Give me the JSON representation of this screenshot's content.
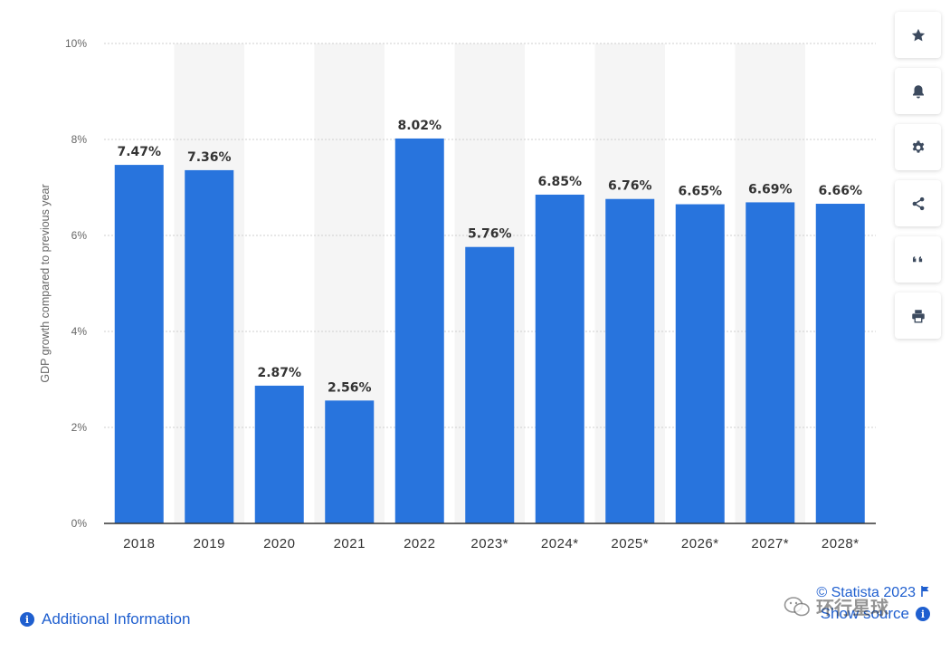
{
  "chart_data": {
    "type": "bar",
    "categories": [
      "2018",
      "2019",
      "2020",
      "2021",
      "2022",
      "2023*",
      "2024*",
      "2025*",
      "2026*",
      "2027*",
      "2028*"
    ],
    "values": [
      7.47,
      7.36,
      2.87,
      2.56,
      8.02,
      5.76,
      6.85,
      6.76,
      6.65,
      6.69,
      6.66
    ],
    "value_labels": [
      "7.47%",
      "7.36%",
      "2.87%",
      "2.56%",
      "8.02%",
      "5.76%",
      "6.85%",
      "6.76%",
      "6.65%",
      "6.69%",
      "6.66%"
    ],
    "ylabel": "GDP growth compared to previous year",
    "ylim": [
      0,
      10
    ],
    "yticks": [
      0,
      2,
      4,
      6,
      8,
      10
    ],
    "ytick_labels": [
      "0%",
      "2%",
      "4%",
      "6%",
      "8%",
      "10%"
    ],
    "grid": true,
    "legend": "none",
    "bar_color": "#2874dd"
  },
  "toolbar": [
    {
      "name": "favorite-button",
      "icon": "star-icon"
    },
    {
      "name": "notification-button",
      "icon": "bell-icon"
    },
    {
      "name": "settings-button",
      "icon": "gear-icon"
    },
    {
      "name": "share-button",
      "icon": "share-icon"
    },
    {
      "name": "cite-button",
      "icon": "quote-icon"
    },
    {
      "name": "print-button",
      "icon": "printer-icon"
    }
  ],
  "footer": {
    "additional_info": "Additional Information",
    "copyright": "© Statista 2023",
    "show_source": "Show source"
  },
  "watermark": {
    "text": "环行星球"
  },
  "colors": {
    "accent": "#1f5fcf",
    "bar": "#2874dd",
    "icon": "#3c4a5e"
  }
}
